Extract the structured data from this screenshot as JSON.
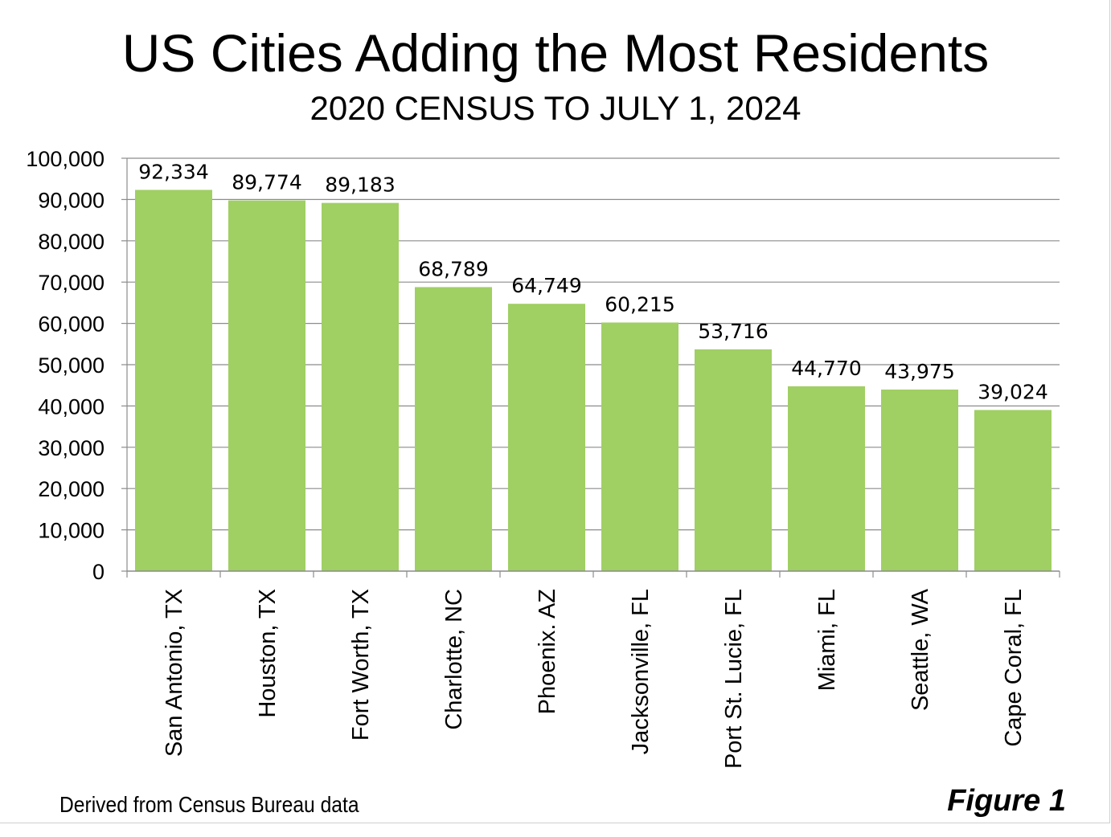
{
  "chart_data": {
    "type": "bar",
    "title": "US Cities Adding the Most Residents",
    "subtitle": "2020 CENSUS TO JULY 1, 2024",
    "categories": [
      "San Antonio, TX",
      "Houston, TX",
      "Fort Worth, TX",
      "Charlotte, NC",
      "Phoenix. AZ",
      "Jacksonville, FL",
      "Port St. Lucie, FL",
      "Miami, FL",
      "Seattle, WA",
      "Cape Coral, FL"
    ],
    "values": [
      92334,
      89774,
      89183,
      68789,
      64749,
      60215,
      53716,
      44770,
      43975,
      39024
    ],
    "data_labels": [
      "92,334",
      "89,774",
      "89,183",
      "68,789",
      "64,749",
      "60,215",
      "53,716",
      "44,770",
      "43,975",
      "39,024"
    ],
    "ylim": [
      0,
      100000
    ],
    "yticks": [
      0,
      10000,
      20000,
      30000,
      40000,
      50000,
      60000,
      70000,
      80000,
      90000,
      100000
    ],
    "ytick_labels": [
      "0",
      "10,000",
      "20,000",
      "30,000",
      "40,000",
      "50,000",
      "60,000",
      "70,000",
      "80,000",
      "90,000",
      "100,000"
    ],
    "xlabel": "",
    "ylabel": "",
    "grid": true,
    "bar_color": "#A0CF63",
    "grid_color": "#8C8C8C",
    "x_tick_label_rotation": "vertical"
  },
  "footer": {
    "source": "Derived from Census Bureau data",
    "figure_label": "Figure 1"
  }
}
